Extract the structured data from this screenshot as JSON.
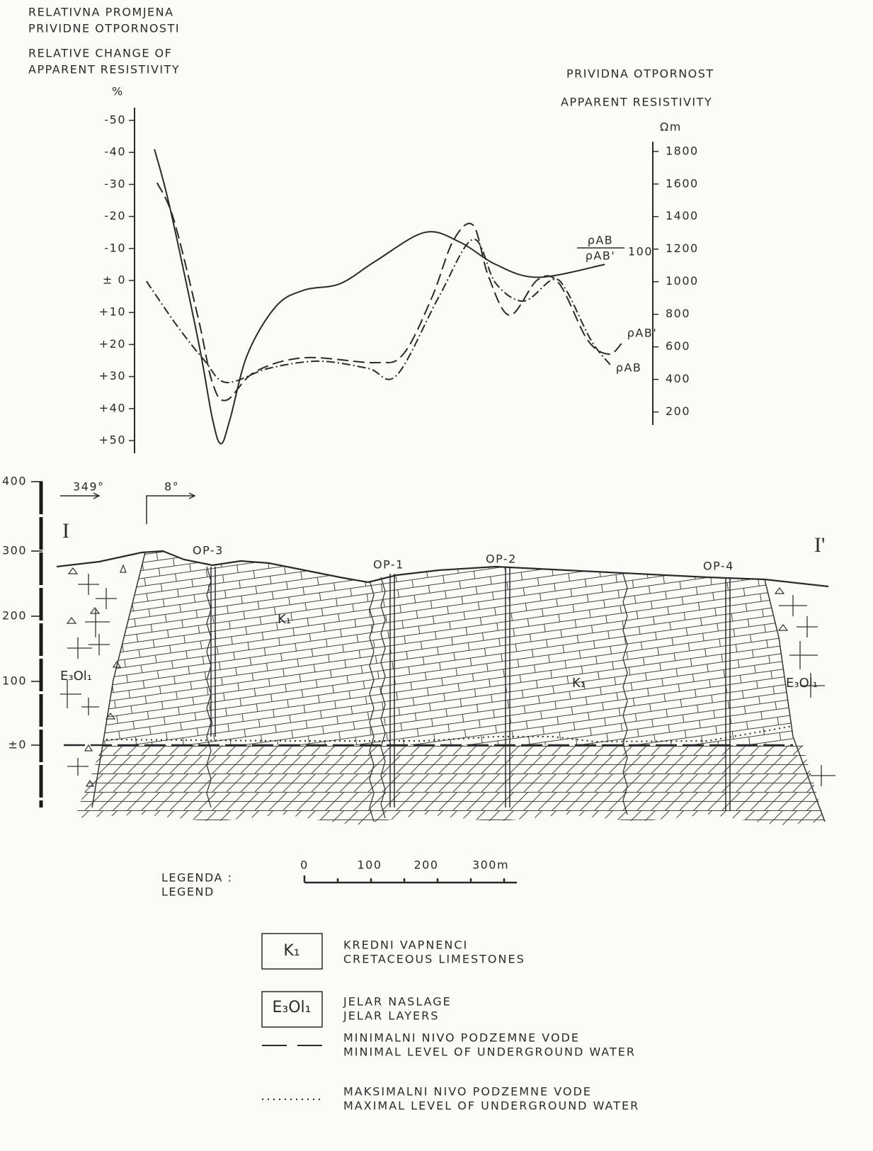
{
  "chart_data": {
    "type": "line",
    "y_title": [
      "RELATIVNA PROMJENA",
      "PRIVIDNE OTPORNOSTI",
      "RELATIVE CHANGE OF",
      "APPARENT RESISTIVITY"
    ],
    "y_unit": "%",
    "y2_title": [
      "PRIVIDNA OTPORNOST",
      "APPARENT RESISTIVITY"
    ],
    "y2_unit": "Ωm",
    "ratio_label": {
      "numerator": "ρAB",
      "denominator": "ρAB'",
      "factor": "100"
    },
    "xlim": [
      0,
      1160
    ],
    "ylim": [
      50,
      -50
    ],
    "yticks": [
      -50,
      -40,
      -30,
      -20,
      -10,
      {
        "value": 0,
        "label": "± 0"
      },
      {
        "value": 10,
        "label": "+10"
      },
      {
        "value": 20,
        "label": "+20"
      },
      {
        "value": 30,
        "label": "+30"
      },
      {
        "value": 40,
        "label": "+40"
      },
      {
        "value": 50,
        "label": "+50"
      }
    ],
    "y2lim": [
      120,
      1860
    ],
    "y2ticks": [
      200,
      400,
      600,
      800,
      1000,
      1200,
      1400,
      1600,
      1800
    ],
    "series": [
      {
        "color": "#2a2a2a",
        "style": "solid",
        "x": [
          147,
          170,
          213,
          234,
          247,
          261,
          287,
          330,
          372,
          426,
          479,
          553,
          606,
          660,
          723,
          824
        ],
        "values": [
          -41,
          -23,
          19,
          43,
          51,
          43,
          23,
          8,
          3,
          1,
          -6,
          -15,
          -12,
          -5,
          -1,
          -5
        ]
      },
      {
        "name": "ρAB'",
        "color": "#2a2a2a",
        "style": "dashed",
        "axis": "y2",
        "x": [
          151,
          176,
          213,
          234,
          255,
          298,
          372,
          479,
          521,
          564,
          596,
          626,
          649,
          681,
          723,
          755,
          798,
          830,
          849
        ],
        "values": [
          1608,
          1382,
          773,
          381,
          272,
          446,
          533,
          503,
          555,
          903,
          1251,
          1347,
          1034,
          794,
          1012,
          990,
          642,
          555,
          620
        ]
      },
      {
        "name": "ρAB",
        "color": "#2a2a2a",
        "style": "dashdot",
        "axis": "y2",
        "x": [
          135,
          181,
          223,
          255,
          319,
          394,
          468,
          511,
          574,
          626,
          660,
          702,
          745,
          766,
          803,
          832
        ],
        "values": [
          1003,
          729,
          512,
          381,
          468,
          512,
          468,
          425,
          903,
          1260,
          990,
          881,
          1012,
          947,
          642,
          490
        ]
      }
    ]
  },
  "section": {
    "elevation_ticks": [
      "400",
      "300",
      "200",
      "100",
      "±0"
    ],
    "azimuths": [
      "349°",
      "8°"
    ],
    "profile_ends": [
      "I",
      "I'"
    ],
    "wells": [
      "OP-3",
      "OP-1",
      "OP-2",
      "OP-4"
    ],
    "unit_labels": [
      "E₃Ol₁",
      "K₁",
      "K₁",
      "E₃Ol₁"
    ]
  },
  "scale_bar": {
    "labels": [
      "0",
      "100",
      "200",
      "300m"
    ]
  },
  "legend": {
    "title": [
      "LEGENDA :",
      "LEGEND"
    ],
    "items": [
      {
        "symbol": "K₁",
        "lines": [
          "KREDNI VAPNENCI",
          "CRETACEOUS LIMESTONES"
        ]
      },
      {
        "symbol": "E₃Ol₁",
        "lines": [
          "JELAR NASLAGE",
          "JELAR LAYERS"
        ]
      },
      {
        "lines": [
          "MINIMALNI NIVO PODZEMNE VODE",
          "MINIMAL LEVEL OF UNDERGROUND WATER"
        ]
      },
      {
        "lines": [
          "MAKSIMALNI NIVO PODZEMNE VODE",
          "MAXIMAL LEVEL OF UNDERGROUND WATER"
        ]
      }
    ]
  }
}
